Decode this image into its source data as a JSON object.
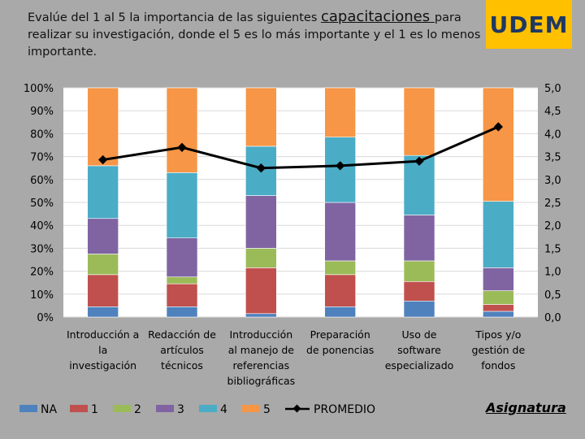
{
  "header": {
    "title_part1": "Evalúe del 1 al 5 la importancia de las siguientes ",
    "title_emph": "capacitaciones ",
    "title_part2": "para realizar su investigación, donde el 5 es lo más importante y el 1 es lo menos importante."
  },
  "logo": {
    "text": "UDEM",
    "bg": "#ffc000",
    "fg": "#1f3864"
  },
  "footer": {
    "subject_link": "Asignatura"
  },
  "chart_data": {
    "type": "bar",
    "stacked": true,
    "percent_stacked": true,
    "categories": [
      [
        "Introducción a",
        "la",
        "investigación"
      ],
      [
        "Redacción de",
        "artículos",
        "técnicos"
      ],
      [
        "Introducción",
        "al manejo de",
        "referencias",
        "bibliográficas"
      ],
      [
        "Preparación",
        "de ponencias"
      ],
      [
        "Uso de",
        "software",
        "especializado"
      ],
      [
        "Tipos y/o",
        "gestión de",
        "fondos"
      ]
    ],
    "series": [
      {
        "name": "NA",
        "color": "#4f81bd",
        "values": [
          4.5,
          4.5,
          1.5,
          4.5,
          7,
          2.5
        ]
      },
      {
        "name": "1",
        "color": "#c0504d",
        "values": [
          14,
          10,
          20,
          14,
          8.5,
          3
        ]
      },
      {
        "name": "2",
        "color": "#9bbb59",
        "values": [
          9,
          3,
          8.5,
          6,
          9,
          6
        ]
      },
      {
        "name": "3",
        "color": "#8064a2",
        "values": [
          15.5,
          17,
          23,
          25.5,
          20,
          10
        ]
      },
      {
        "name": "4",
        "color": "#4bacc6",
        "values": [
          23,
          28.5,
          21.5,
          28.5,
          26,
          29
        ]
      },
      {
        "name": "5",
        "color": "#f79646",
        "values": [
          34,
          37,
          25.5,
          21.5,
          29.5,
          49.5
        ]
      }
    ],
    "line_series": {
      "name": "PROMEDIO",
      "color": "#000000",
      "values": [
        3.43,
        3.7,
        3.25,
        3.3,
        3.4,
        4.15
      ]
    },
    "y_left": {
      "min": 0,
      "max": 100,
      "ticks": [
        "0%",
        "10%",
        "20%",
        "30%",
        "40%",
        "50%",
        "60%",
        "70%",
        "80%",
        "90%",
        "100%"
      ]
    },
    "y_right": {
      "min": 0,
      "max": 5,
      "ticks": [
        "0,0",
        "0,5",
        "1,0",
        "1,5",
        "2,0",
        "2,5",
        "3,0",
        "3,5",
        "4,0",
        "4,5",
        "5,0"
      ]
    },
    "legend": {
      "position": "bottom",
      "entries": [
        "NA",
        "1",
        "2",
        "3",
        "4",
        "5",
        "PROMEDIO"
      ]
    },
    "grid": true
  }
}
